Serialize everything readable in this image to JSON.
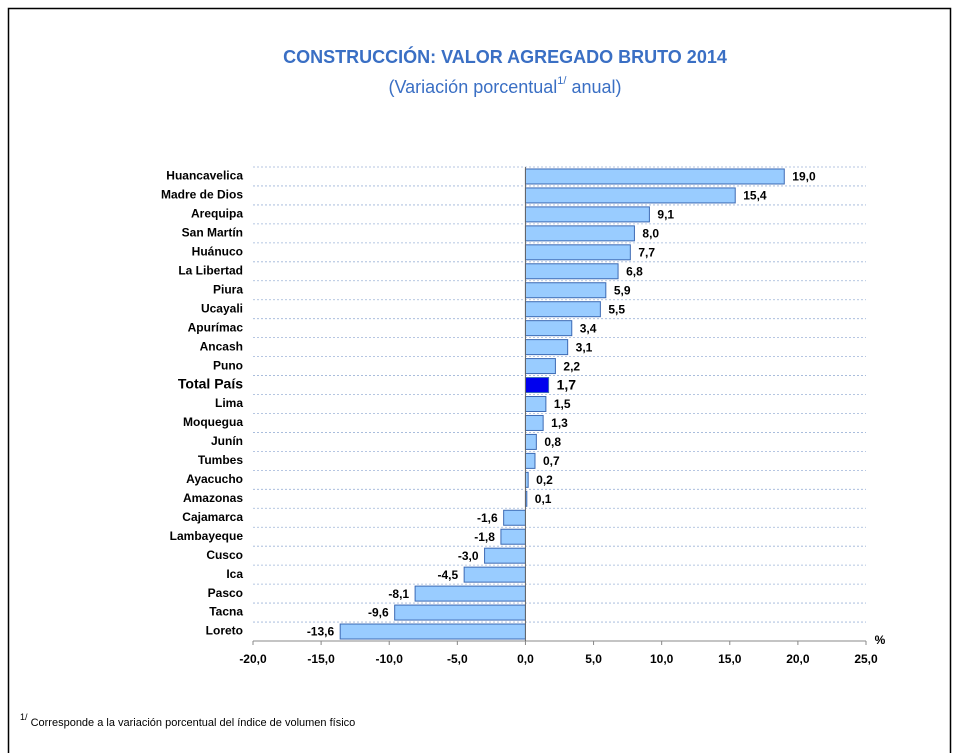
{
  "chart_data": {
    "type": "barh",
    "title": "CONSTRUCCIÓN: VALOR AGREGADO BRUTO 2014",
    "subtitle": [
      "(Variación porcentual",
      "1/",
      " anual)"
    ],
    "footnote": [
      "1/",
      " Corresponde a la variación porcentual del índice de volumen físico"
    ],
    "xlabel": "%",
    "categories": [
      "Huancavelica",
      "Madre de Dios",
      "Arequipa",
      "San Martín",
      "Huánuco",
      "La Libertad",
      "Piura",
      "Ucayali",
      "Apurímac",
      "Ancash",
      "Puno",
      "Total País",
      "Lima",
      "Moquegua",
      "Junín",
      "Tumbes",
      "Ayacucho",
      "Amazonas",
      "Cajamarca",
      "Lambayeque",
      "Cusco",
      "Ica",
      "Pasco",
      "Tacna",
      "Loreto"
    ],
    "values": [
      19.0,
      15.4,
      9.1,
      8.0,
      7.7,
      6.8,
      5.9,
      5.5,
      3.4,
      3.1,
      2.2,
      1.7,
      1.5,
      1.3,
      0.8,
      0.7,
      0.2,
      0.1,
      -1.6,
      -1.8,
      -3.0,
      -4.5,
      -8.1,
      -9.6,
      -13.6
    ],
    "value_labels": [
      "19,0",
      "15,4",
      "9,1",
      "8,0",
      "7,7",
      "6,8",
      "5,9",
      "5,5",
      "3,4",
      "3,1",
      "2,2",
      "1,7",
      "1,5",
      "1,3",
      "0,8",
      "0,7",
      "0,2",
      "0,1",
      "-1,6",
      "-1,8",
      "-3,0",
      "-4,5",
      "-8,1",
      "-9,6",
      "-13,6"
    ],
    "color": "#99ccff",
    "edgecolor": "#3c6ab4",
    "highlight": {
      "index": 11,
      "color": "#0000ee"
    },
    "xlim": [
      -20,
      25
    ],
    "xticks": [
      {
        "value": -20,
        "label": "-20,0"
      },
      {
        "value": -15,
        "label": "-15,0"
      },
      {
        "value": -10,
        "label": "-10,0"
      },
      {
        "value": -5,
        "label": "-5,0"
      },
      {
        "value": 0,
        "label": "0,0"
      },
      {
        "value": 5,
        "label": "5,0"
      },
      {
        "value": 10,
        "label": "10,0"
      },
      {
        "value": 15,
        "label": "15,0"
      },
      {
        "value": 20,
        "label": "20,0"
      },
      {
        "value": 25,
        "label": "25,0"
      }
    ],
    "grid": true
  }
}
